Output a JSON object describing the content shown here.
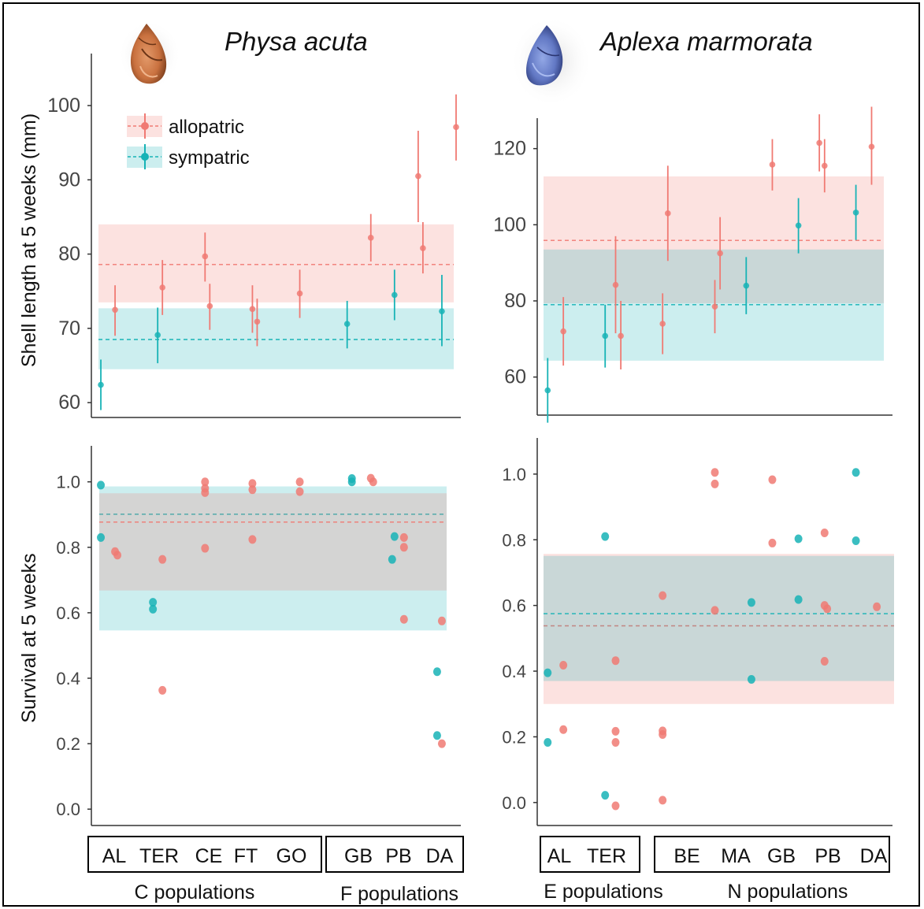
{
  "figure": {
    "species_left": "Physa acuta",
    "species_right": "Aplexa marmorata",
    "ylabel_top": "Shell length at 5 weeks (mm)",
    "ylabel_bottom": "Survival at 5 weeks",
    "legend": [
      {
        "label": "allopatric",
        "color": "#f07a73"
      },
      {
        "label": "sympatric",
        "color": "#17b3b6"
      }
    ],
    "left_groups": [
      {
        "label": "C populations",
        "pops": [
          "AL",
          "TER",
          "CE",
          "FT",
          "GO"
        ]
      },
      {
        "label": "F populations",
        "pops": [
          "GB",
          "PB",
          "DA"
        ]
      }
    ],
    "right_groups": [
      {
        "label": "E populations",
        "pops": [
          "AL",
          "TER"
        ]
      },
      {
        "label": "N populations",
        "pops": [
          "BE",
          "MA",
          "GB",
          "PB",
          "DA"
        ]
      }
    ]
  },
  "chart_data": [
    {
      "type": "scatter",
      "panel": "Physa acuta – shell length",
      "ylim": [
        58,
        107
      ],
      "yticks": [
        60,
        70,
        80,
        90,
        100
      ],
      "x_range": [
        0.6,
        8.4
      ],
      "bands": [
        {
          "group": "allopatric",
          "color": "#f07a73",
          "mean": 78.6,
          "low": 73.5,
          "high": 84
        },
        {
          "group": "sympatric",
          "color": "#17b3b6",
          "mean": 68.5,
          "low": 64.5,
          "high": 72.7
        }
      ],
      "series": [
        {
          "name": "allopatric",
          "color": "#f07a73",
          "points": [
            {
              "x": 1.1,
              "y": 72.5,
              "lo": 69.0,
              "hi": 75.8
            },
            {
              "x": 2.1,
              "y": 75.5,
              "lo": 71.8,
              "hi": 79.2
            },
            {
              "x": 3.0,
              "y": 79.7,
              "lo": 76.3,
              "hi": 82.9
            },
            {
              "x": 3.1,
              "y": 73.0,
              "lo": 69.8,
              "hi": 76.0
            },
            {
              "x": 4.0,
              "y": 72.6,
              "lo": 69.4,
              "hi": 75.8
            },
            {
              "x": 4.1,
              "y": 70.9,
              "lo": 67.6,
              "hi": 74.0
            },
            {
              "x": 5.0,
              "y": 74.7,
              "lo": 71.4,
              "hi": 77.9
            },
            {
              "x": 6.5,
              "y": 82.2,
              "lo": 79.0,
              "hi": 85.4
            },
            {
              "x": 7.5,
              "y": 90.5,
              "lo": 84.3,
              "hi": 96.6
            },
            {
              "x": 7.6,
              "y": 80.8,
              "lo": 77.4,
              "hi": 84.3
            },
            {
              "x": 8.3,
              "y": 97.1,
              "lo": 92.6,
              "hi": 101.5
            }
          ]
        },
        {
          "name": "sympatric",
          "color": "#17b3b6",
          "points": [
            {
              "x": 0.8,
              "y": 62.4,
              "lo": 59.0,
              "hi": 65.8
            },
            {
              "x": 2.0,
              "y": 69.1,
              "lo": 65.3,
              "hi": 72.8
            },
            {
              "x": 6.0,
              "y": 70.6,
              "lo": 67.3,
              "hi": 73.7
            },
            {
              "x": 7.0,
              "y": 74.5,
              "lo": 71.1,
              "hi": 77.9
            },
            {
              "x": 8.0,
              "y": 72.3,
              "lo": 67.6,
              "hi": 77.2
            }
          ]
        }
      ]
    },
    {
      "type": "scatter",
      "panel": "Aplexa marmorata – shell length",
      "ylim": [
        50,
        128
      ],
      "yticks": [
        60,
        80,
        100,
        120
      ],
      "x_range": [
        0.6,
        7.4
      ],
      "bands": [
        {
          "group": "allopatric",
          "color": "#f07a73",
          "mean": 95.9,
          "low": 79.4,
          "high": 112.7
        },
        {
          "group": "sympatric",
          "color": "#17b3b6",
          "mean": 79.0,
          "low": 64.3,
          "high": 93.5
        }
      ],
      "series": [
        {
          "name": "allopatric",
          "color": "#f07a73",
          "points": [
            {
              "x": 1.1,
              "y": 72.0,
              "lo": 63.0,
              "hi": 81.0
            },
            {
              "x": 2.1,
              "y": 84.2,
              "lo": 71.5,
              "hi": 97.0
            },
            {
              "x": 2.2,
              "y": 70.8,
              "lo": 62.0,
              "hi": 80.0
            },
            {
              "x": 3.0,
              "y": 74.0,
              "lo": 66.0,
              "hi": 82.0
            },
            {
              "x": 3.1,
              "y": 103.0,
              "lo": 90.5,
              "hi": 115.5
            },
            {
              "x": 4.0,
              "y": 78.5,
              "lo": 71.5,
              "hi": 85.5
            },
            {
              "x": 4.1,
              "y": 92.5,
              "lo": 83.0,
              "hi": 102.0
            },
            {
              "x": 5.1,
              "y": 115.8,
              "lo": 109.0,
              "hi": 122.5
            },
            {
              "x": 6.0,
              "y": 121.5,
              "lo": 114.0,
              "hi": 129.0
            },
            {
              "x": 6.1,
              "y": 115.5,
              "lo": 108.5,
              "hi": 122.5
            },
            {
              "x": 7.0,
              "y": 120.5,
              "lo": 110.5,
              "hi": 131.0
            }
          ]
        },
        {
          "name": "sympatric",
          "color": "#17b3b6",
          "points": [
            {
              "x": 0.8,
              "y": 56.5,
              "lo": 48.0,
              "hi": 65.0
            },
            {
              "x": 1.9,
              "y": 70.8,
              "lo": 62.5,
              "hi": 79.0
            },
            {
              "x": 4.6,
              "y": 84.0,
              "lo": 76.5,
              "hi": 91.5
            },
            {
              "x": 5.6,
              "y": 99.8,
              "lo": 92.5,
              "hi": 107.0
            },
            {
              "x": 6.7,
              "y": 103.2,
              "lo": 96.0,
              "hi": 110.5
            }
          ]
        }
      ]
    },
    {
      "type": "scatter",
      "panel": "Physa acuta – survival",
      "ylim": [
        -0.05,
        1.11
      ],
      "yticks": [
        0.0,
        0.2,
        0.4,
        0.6,
        0.8,
        1.0
      ],
      "x_range": [
        0.6,
        8.4
      ],
      "bands": [
        {
          "group": "sympatric",
          "color": "#17b3b6",
          "mean": 0.901,
          "low": 0.546,
          "high": 0.986
        },
        {
          "group": "allopatric",
          "color": "#f07a73",
          "mean": 0.877,
          "low": 0.668,
          "high": 0.965
        }
      ],
      "series": [
        {
          "name": "allopatric",
          "color": "#f07a73",
          "points": [
            {
              "x": 1.1,
              "y": 0.787
            },
            {
              "x": 1.15,
              "y": 0.776
            },
            {
              "x": 2.1,
              "y": 0.763
            },
            {
              "x": 2.1,
              "y": 0.363
            },
            {
              "x": 3.0,
              "y": 1.0
            },
            {
              "x": 3.0,
              "y": 0.98
            },
            {
              "x": 3.0,
              "y": 0.967
            },
            {
              "x": 3.0,
              "y": 0.797
            },
            {
              "x": 4.0,
              "y": 0.995
            },
            {
              "x": 4.0,
              "y": 0.976
            },
            {
              "x": 4.0,
              "y": 0.824
            },
            {
              "x": 5.0,
              "y": 1.0
            },
            {
              "x": 5.0,
              "y": 0.97
            },
            {
              "x": 6.5,
              "y": 1.011
            },
            {
              "x": 6.55,
              "y": 1.0
            },
            {
              "x": 7.2,
              "y": 0.83
            },
            {
              "x": 7.2,
              "y": 0.8
            },
            {
              "x": 7.2,
              "y": 0.58
            },
            {
              "x": 8.0,
              "y": 0.575
            },
            {
              "x": 8.0,
              "y": 0.2
            }
          ]
        },
        {
          "name": "sympatric",
          "color": "#17b3b6",
          "points": [
            {
              "x": 0.8,
              "y": 0.99
            },
            {
              "x": 0.8,
              "y": 0.83
            },
            {
              "x": 1.9,
              "y": 0.632
            },
            {
              "x": 1.9,
              "y": 0.611
            },
            {
              "x": 6.1,
              "y": 1.01
            },
            {
              "x": 6.1,
              "y": 1.0
            },
            {
              "x": 7.0,
              "y": 0.833
            },
            {
              "x": 6.95,
              "y": 0.763
            },
            {
              "x": 7.9,
              "y": 0.42
            },
            {
              "x": 7.9,
              "y": 0.225
            }
          ]
        }
      ]
    },
    {
      "type": "scatter",
      "panel": "Aplexa marmorata – survival",
      "ylim": [
        -0.07,
        1.11
      ],
      "yticks": [
        0.0,
        0.2,
        0.4,
        0.6,
        0.8,
        1.0
      ],
      "x_range": [
        0.6,
        7.4
      ],
      "bands": [
        {
          "group": "allopatric",
          "color": "#f07a73",
          "mean": 0.538,
          "low": 0.3,
          "high": 0.757
        },
        {
          "group": "sympatric",
          "color": "#17b3b6",
          "mean": 0.575,
          "low": 0.37,
          "high": 0.751
        }
      ],
      "series": [
        {
          "name": "allopatric",
          "color": "#f07a73",
          "points": [
            {
              "x": 1.1,
              "y": 0.418
            },
            {
              "x": 1.1,
              "y": 0.222
            },
            {
              "x": 2.1,
              "y": 0.432
            },
            {
              "x": 2.1,
              "y": 0.217
            },
            {
              "x": 2.1,
              "y": 0.183
            },
            {
              "x": 2.1,
              "y": -0.01
            },
            {
              "x": 3.0,
              "y": 0.63
            },
            {
              "x": 3.0,
              "y": 0.218
            },
            {
              "x": 3.0,
              "y": 0.207
            },
            {
              "x": 3.0,
              "y": 0.007
            },
            {
              "x": 4.0,
              "y": 1.005
            },
            {
              "x": 4.0,
              "y": 0.97
            },
            {
              "x": 4.0,
              "y": 0.585
            },
            {
              "x": 5.1,
              "y": 0.983
            },
            {
              "x": 5.1,
              "y": 0.79
            },
            {
              "x": 6.1,
              "y": 0.821
            },
            {
              "x": 6.1,
              "y": 0.6
            },
            {
              "x": 6.15,
              "y": 0.59
            },
            {
              "x": 6.1,
              "y": 0.43
            },
            {
              "x": 7.1,
              "y": 0.596
            }
          ]
        },
        {
          "name": "sympatric",
          "color": "#17b3b6",
          "points": [
            {
              "x": 0.8,
              "y": 0.395
            },
            {
              "x": 0.8,
              "y": 0.183
            },
            {
              "x": 1.9,
              "y": 0.81
            },
            {
              "x": 1.9,
              "y": 0.022
            },
            {
              "x": 4.7,
              "y": 0.609
            },
            {
              "x": 4.7,
              "y": 0.375
            },
            {
              "x": 5.6,
              "y": 0.803
            },
            {
              "x": 5.6,
              "y": 0.618
            },
            {
              "x": 6.7,
              "y": 1.005
            },
            {
              "x": 6.7,
              "y": 0.797
            }
          ]
        }
      ]
    }
  ]
}
